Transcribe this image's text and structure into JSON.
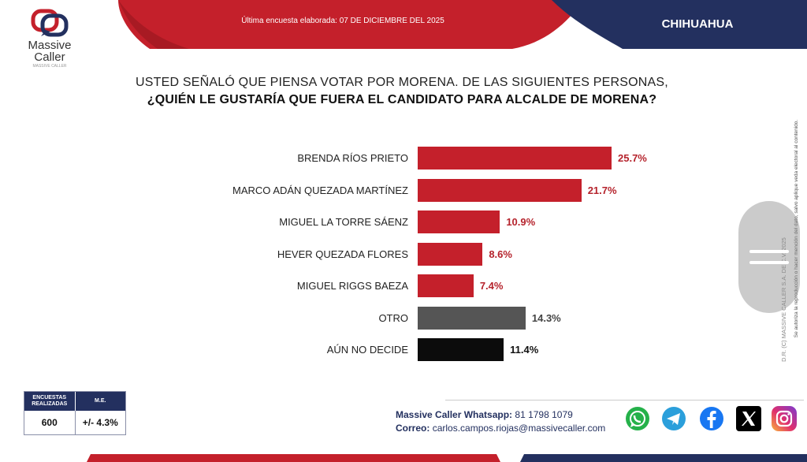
{
  "brand": {
    "name": "Massive\nCaller",
    "tagline": "MASSIVE CALLER"
  },
  "header": {
    "survey_date": "Última encuesta elaborada: 07 DE DICIEMBRE DEL 2025",
    "state": "CHIHUAHUA"
  },
  "question": {
    "line1": "USTED SEÑALÓ QUE PIENSA VOTAR POR MORENA. DE LAS SIGUIENTES PERSONAS,",
    "line2": "¿QUIÉN LE GUSTARÍA QUE FUERA EL CANDIDATO PARA ALCALDE DE MORENA?"
  },
  "chart_data": {
    "type": "bar",
    "orientation": "horizontal",
    "categories": [
      "BRENDA RÍOS PRIETO",
      "MARCO ADÁN QUEZADA MARTÍNEZ",
      "MIGUEL LA TORRE SÁENZ",
      "HEVER QUEZADA FLORES",
      "MIGUEL RIGGS BAEZA",
      "OTRO",
      "AÚN NO DECIDE"
    ],
    "values": [
      25.7,
      21.7,
      10.9,
      8.6,
      7.4,
      14.3,
      11.4
    ],
    "value_labels": [
      "25.7%",
      "21.7%",
      "10.9%",
      "8.6%",
      "7.4%",
      "14.3%",
      "11.4%"
    ],
    "bar_colors": [
      "#c4202b",
      "#c4202b",
      "#c4202b",
      "#c4202b",
      "#c4202b",
      "#555555",
      "#0c0c0c"
    ],
    "label_colors": [
      "#b5232c",
      "#b5232c",
      "#b5232c",
      "#b5232c",
      "#b5232c",
      "#444444",
      "#111111"
    ],
    "grid": false,
    "title": "",
    "xlabel": "",
    "ylabel": ""
  },
  "survey_meta": {
    "sample_label": "ENCUESTAS REALIZADAS",
    "sample_value": "600",
    "error_label": "M.E.",
    "error_value": "+/- 4.3%"
  },
  "contact": {
    "whatsapp_label": "Massive Caller Whatsapp:",
    "whatsapp_value": "81 1798 1079",
    "email_label": "Correo:",
    "email_value": "carlos.campos.riojas@massivecaller.com"
  },
  "social_icons": [
    "whatsapp-icon",
    "telegram-icon",
    "facebook-icon",
    "x-icon",
    "instagram-icon"
  ],
  "disclaimer": {
    "line1": "D.R. (C) MASSIVE CALLER S.A. DE C.V. 2025",
    "line2": "Se autoriza la reproducción o hacer mención del dato, salvo aplique veda electoral al contenido."
  },
  "colors": {
    "red": "#c4202b",
    "navy": "#23305f",
    "gray": "#555555",
    "black": "#0c0c0c"
  }
}
